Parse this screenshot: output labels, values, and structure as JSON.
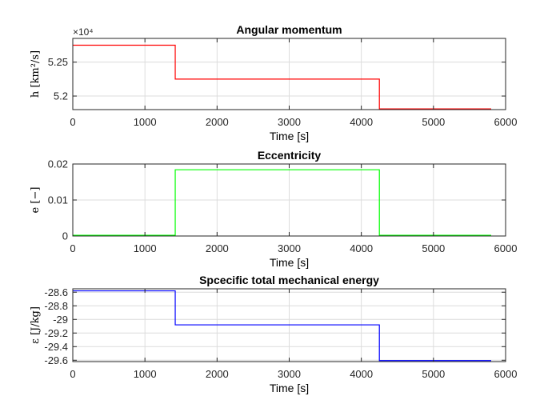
{
  "chart_data": [
    {
      "type": "line",
      "title": "Angular momentum",
      "xlabel": "Time [s]",
      "ylabel": "h [km²/s]",
      "y_multiplier_label": "×10⁴",
      "xlim": [
        0,
        6000
      ],
      "ylim": [
        5.18,
        5.285
      ],
      "grid": true,
      "color": "#ff0000",
      "xticks": [
        0,
        1000,
        2000,
        3000,
        4000,
        5000,
        6000
      ],
      "xtick_labels": [
        "0",
        "1000",
        "2000",
        "3000",
        "4000",
        "5000",
        "6000"
      ],
      "yticks": [
        5.2,
        5.25
      ],
      "ytick_labels": [
        "5.2",
        "5.25"
      ],
      "series": [
        {
          "x": [
            0,
            1420,
            1420,
            4250,
            4250,
            5800
          ],
          "y": [
            5.275,
            5.275,
            5.225,
            5.225,
            5.181,
            5.181
          ]
        }
      ]
    },
    {
      "type": "line",
      "title": "Eccentricity",
      "xlabel": "Time [s]",
      "ylabel": "e [−]",
      "xlim": [
        0,
        6000
      ],
      "ylim": [
        0,
        0.02
      ],
      "grid": true,
      "color": "#00ff00",
      "xticks": [
        0,
        1000,
        2000,
        3000,
        4000,
        5000,
        6000
      ],
      "xtick_labels": [
        "0",
        "1000",
        "2000",
        "3000",
        "4000",
        "5000",
        "6000"
      ],
      "yticks": [
        0,
        0.01,
        0.02
      ],
      "ytick_labels": [
        "0",
        "0.01",
        "0.02"
      ],
      "series": [
        {
          "x": [
            0,
            1420,
            1420,
            4250,
            4250,
            5800
          ],
          "y": [
            0.0002,
            0.0002,
            0.0184,
            0.0184,
            0.0002,
            0.0002
          ]
        }
      ]
    },
    {
      "type": "line",
      "title": "Spcecific total mechanical energy",
      "xlabel": "Time [s]",
      "ylabel": "ε [J/kg]",
      "xlim": [
        0,
        6000
      ],
      "ylim": [
        -29.62,
        -28.55
      ],
      "grid": true,
      "color": "#0000ff",
      "xticks": [
        0,
        1000,
        2000,
        3000,
        4000,
        5000,
        6000
      ],
      "xtick_labels": [
        "0",
        "1000",
        "2000",
        "3000",
        "4000",
        "5000",
        "6000"
      ],
      "yticks": [
        -29.6,
        -29.4,
        -29.2,
        -29.0,
        -28.8,
        -28.6
      ],
      "ytick_labels": [
        "-29.6",
        "-29.4",
        "-29.2",
        "-29",
        "-28.8",
        "-28.6"
      ],
      "series": [
        {
          "x": [
            0,
            1420,
            1420,
            4250,
            4250,
            5800
          ],
          "y": [
            -28.58,
            -28.58,
            -29.08,
            -29.08,
            -29.605,
            -29.605
          ]
        }
      ]
    }
  ]
}
